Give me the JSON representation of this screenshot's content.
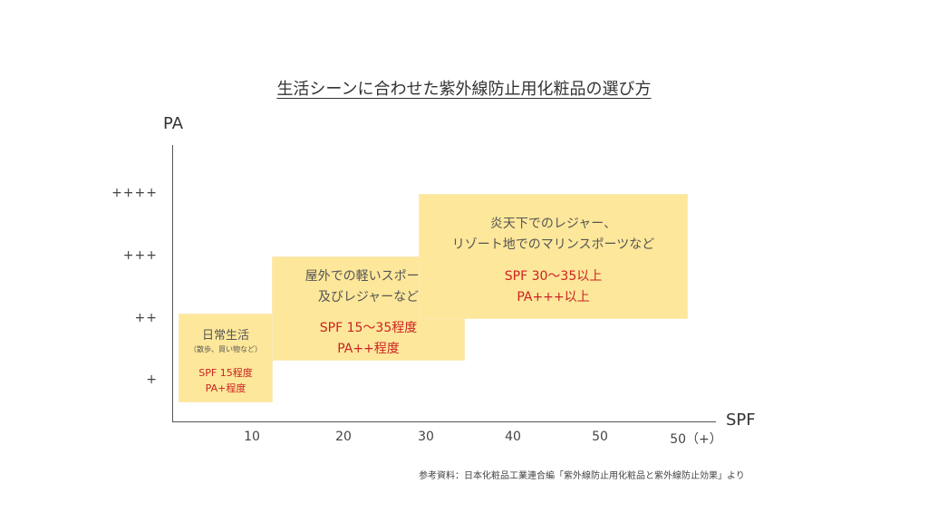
{
  "title": "生活シーンに合わせた紫外線防止用化粧品の選び方",
  "axes": {
    "y_label": "PA",
    "x_label": "SPF",
    "y_ticks": [
      "++++",
      "+++",
      "++",
      "+"
    ],
    "x_ticks": [
      "10",
      "20",
      "30",
      "40",
      "50",
      "50（+）"
    ]
  },
  "boxes": [
    {
      "desc": [
        "日常生活",
        "（散歩、買い物など）"
      ],
      "spec": [
        "SPF 15程度",
        "PA+程度"
      ]
    },
    {
      "desc": [
        "屋外での軽いスポーツ",
        "及びレジャーなど"
      ],
      "spec": [
        "SPF 15〜35程度",
        "PA++程度"
      ]
    },
    {
      "desc": [
        "炎天下でのレジャー、",
        "リゾート地でのマリンスポーツなど"
      ],
      "spec": [
        "SPF 30〜35以上",
        "PA+++以上"
      ]
    }
  ],
  "source": "参考資料：日本化粧品工業連合編「紫外線防止用化粧品と紫外線防止効果」より",
  "colors": {
    "box_fill": "#fde79a",
    "spec_text": "#cc2222",
    "axis": "#555555"
  }
}
